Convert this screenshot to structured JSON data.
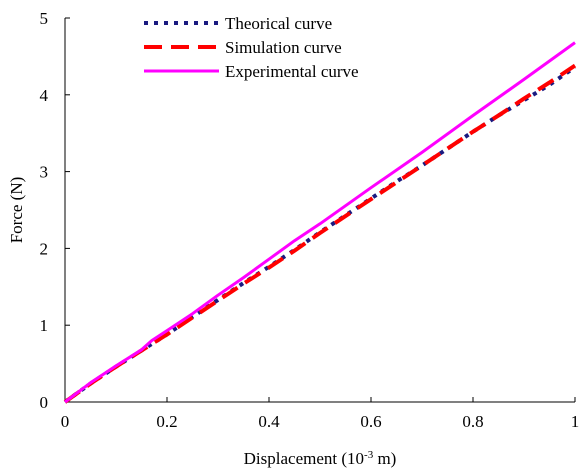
{
  "chart_data": {
    "type": "line",
    "title": "",
    "xlabel_main": "Displacement (10",
    "xlabel_sup": "-3",
    "xlabel_tail": " m)",
    "ylabel": "Force (N)",
    "xlim": [
      0,
      1
    ],
    "ylim": [
      0,
      5
    ],
    "x_ticks": [
      "0",
      "0.2",
      "0.4",
      "0.6",
      "0.8",
      "1"
    ],
    "y_ticks": [
      "0",
      "1",
      "2",
      "3",
      "4",
      "5"
    ],
    "grid": false,
    "legend_position": "top-left",
    "series": [
      {
        "name": "Theorical curve",
        "color": "#1a1a80",
        "style": "dotted",
        "x": [
          0,
          0.05,
          0.1,
          0.15,
          0.2,
          0.25,
          0.3,
          0.35,
          0.4,
          0.45,
          0.5,
          0.55,
          0.6,
          0.65,
          0.7,
          0.75,
          0.8,
          0.85,
          0.9,
          0.95,
          1.0
        ],
        "y": [
          0,
          0.24,
          0.46,
          0.67,
          0.88,
          1.11,
          1.33,
          1.55,
          1.76,
          1.98,
          2.21,
          2.43,
          2.65,
          2.87,
          3.08,
          3.3,
          3.52,
          3.73,
          3.93,
          4.13,
          4.36
        ]
      },
      {
        "name": "Simulation curve",
        "color": "#ff0000",
        "style": "dashed",
        "x": [
          0,
          0.05,
          0.1,
          0.15,
          0.2,
          0.25,
          0.3,
          0.35,
          0.4,
          0.45,
          0.5,
          0.55,
          0.6,
          0.65,
          0.7,
          0.75,
          0.8,
          0.85,
          0.9,
          0.95,
          1.0
        ],
        "y": [
          0,
          0.24,
          0.46,
          0.67,
          0.88,
          1.1,
          1.32,
          1.54,
          1.75,
          1.97,
          2.2,
          2.42,
          2.64,
          2.86,
          3.08,
          3.3,
          3.52,
          3.73,
          3.95,
          4.16,
          4.38
        ]
      },
      {
        "name": "Experimental curve",
        "color": "#ff00ff",
        "style": "solid",
        "x": [
          0,
          0.05,
          0.1,
          0.15,
          0.17,
          0.2,
          0.25,
          0.3,
          0.35,
          0.4,
          0.45,
          0.5,
          0.6,
          0.7,
          0.8,
          0.9,
          1.0
        ],
        "y": [
          0,
          0.25,
          0.47,
          0.68,
          0.8,
          0.93,
          1.15,
          1.39,
          1.62,
          1.86,
          2.1,
          2.32,
          2.79,
          3.25,
          3.73,
          4.2,
          4.68
        ]
      }
    ]
  }
}
